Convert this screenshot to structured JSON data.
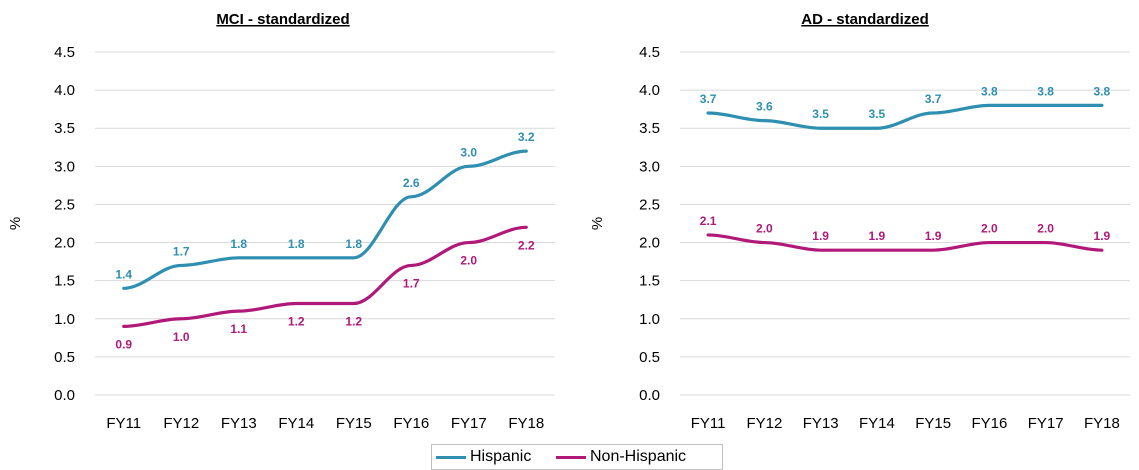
{
  "chart_data": [
    {
      "type": "line",
      "title": "MCI - standardized",
      "ylabel": "%",
      "xlabel": "",
      "categories": [
        "FY11",
        "FY12",
        "FY13",
        "FY14",
        "FY15",
        "FY16",
        "FY17",
        "FY18"
      ],
      "ylim": [
        0,
        4.5
      ],
      "yticks": [
        "0.0",
        "0.5",
        "1.0",
        "1.5",
        "2.0",
        "2.5",
        "3.0",
        "3.5",
        "4.0",
        "4.5"
      ],
      "grid": true,
      "series": [
        {
          "name": "Hispanic",
          "color": "#2e8fb0",
          "values": [
            1.4,
            1.7,
            1.8,
            1.8,
            1.8,
            2.6,
            3.0,
            3.2
          ],
          "labels": [
            "1.4",
            "1.7",
            "1.8",
            "1.8",
            "1.8",
            "2.6",
            "3.0",
            "3.2"
          ]
        },
        {
          "name": "Non-Hispanic",
          "color": "#b0197a",
          "values": [
            0.9,
            1.0,
            1.1,
            1.2,
            1.2,
            1.7,
            2.0,
            2.2
          ],
          "labels": [
            "0.9",
            "1.0",
            "1.1",
            "1.2",
            "1.2",
            "1.7",
            "2.0",
            "2.2"
          ]
        }
      ]
    },
    {
      "type": "line",
      "title": "AD - standardized",
      "ylabel": "%",
      "xlabel": "",
      "categories": [
        "FY11",
        "FY12",
        "FY13",
        "FY14",
        "FY15",
        "FY16",
        "FY17",
        "FY18"
      ],
      "ylim": [
        0,
        4.5
      ],
      "yticks": [
        "0.0",
        "0.5",
        "1.0",
        "1.5",
        "2.0",
        "2.5",
        "3.0",
        "3.5",
        "4.0",
        "4.5"
      ],
      "grid": true,
      "series": [
        {
          "name": "Hispanic",
          "color": "#2e8fb0",
          "values": [
            3.7,
            3.6,
            3.5,
            3.5,
            3.7,
            3.8,
            3.8,
            3.8
          ],
          "labels": [
            "3.7",
            "3.6",
            "3.5",
            "3.5",
            "3.7",
            "3.8",
            "3.8",
            "3.8"
          ]
        },
        {
          "name": "Non-Hispanic",
          "color": "#b0197a",
          "values": [
            2.1,
            2.0,
            1.9,
            1.9,
            1.9,
            2.0,
            2.0,
            1.9
          ],
          "labels": [
            "2.1",
            "2.0",
            "1.9",
            "1.9",
            "1.9",
            "2.0",
            "2.0",
            "1.9"
          ]
        }
      ]
    }
  ],
  "legend": {
    "placement": "bottom",
    "items": [
      {
        "label": "Hispanic",
        "color": "#2e8fb0"
      },
      {
        "label": "Non-Hispanic",
        "color": "#b0197a"
      }
    ]
  }
}
